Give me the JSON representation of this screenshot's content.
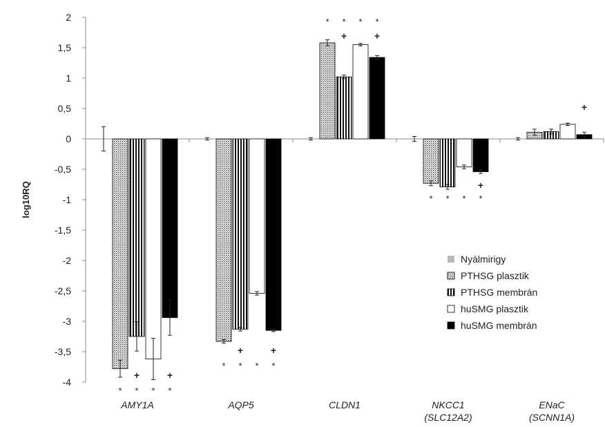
{
  "chart_data": {
    "type": "bar",
    "ylabel": "log10RQ",
    "xlabel": "",
    "ylim": [
      -4,
      2
    ],
    "yticks": [
      "2",
      "1,5",
      "1",
      "0,5",
      "0",
      "-0,5",
      "-1",
      "-1,5",
      "-2",
      "-2,5",
      "-3",
      "-3,5",
      "-4"
    ],
    "categories": [
      {
        "line1": "AMY1A",
        "line2": ""
      },
      {
        "line1": "AQP5",
        "line2": ""
      },
      {
        "line1": "CLDN1",
        "line2": ""
      },
      {
        "line1": "NKCC1",
        "line2": "(SLC12A2)"
      },
      {
        "line1": "ENaC",
        "line2": "(SCNN1A)"
      }
    ],
    "legend_position": "bottom-right",
    "grid": false,
    "series": [
      {
        "name": "Nyálmirigy",
        "fill": "none",
        "values": [
          0,
          0,
          0,
          0,
          0
        ],
        "errors": [
          0.2,
          0.02,
          0.02,
          0.04,
          0.02
        ]
      },
      {
        "name": "PTHSG plasztik",
        "fill": "dots",
        "values": [
          -3.78,
          -3.33,
          1.58,
          -0.73,
          0.11
        ],
        "errors": [
          0.14,
          0.03,
          0.05,
          0.04,
          0.05
        ]
      },
      {
        "name": "PTHSG membrán",
        "fill": "vlines",
        "values": [
          -3.25,
          -3.13,
          1.02,
          -0.79,
          0.12
        ],
        "errors": [
          0.24,
          0.03,
          0.03,
          0.04,
          0.04
        ]
      },
      {
        "name": "huSMG plasztik",
        "fill": "white",
        "values": [
          -3.62,
          -2.54,
          1.55,
          -0.46,
          0.24
        ],
        "errors": [
          0.34,
          0.03,
          0.02,
          0.03,
          0.02
        ]
      },
      {
        "name": "huSMG membrán",
        "fill": "black",
        "values": [
          -2.94,
          -3.15,
          1.34,
          -0.54,
          0.07
        ],
        "errors": [
          0.29,
          0.02,
          0.03,
          0.03,
          0.04
        ]
      }
    ],
    "markers": [
      {
        "text": "*",
        "category": 0,
        "series": 1,
        "place": "below"
      },
      {
        "text": "*",
        "category": 0,
        "series": 2,
        "place": "below"
      },
      {
        "text": "+",
        "category": 0,
        "series": 2,
        "place": "below-high"
      },
      {
        "text": "*",
        "category": 0,
        "series": 3,
        "place": "below"
      },
      {
        "text": "*",
        "category": 0,
        "series": 4,
        "place": "below"
      },
      {
        "text": "+",
        "category": 0,
        "series": 4,
        "place": "below-high"
      },
      {
        "text": "*",
        "category": 1,
        "series": 1,
        "place": "below"
      },
      {
        "text": "*",
        "category": 1,
        "series": 2,
        "place": "below"
      },
      {
        "text": "+",
        "category": 1,
        "series": 2,
        "place": "below-high"
      },
      {
        "text": "*",
        "category": 1,
        "series": 3,
        "place": "below"
      },
      {
        "text": "*",
        "category": 1,
        "series": 4,
        "place": "below"
      },
      {
        "text": "+",
        "category": 1,
        "series": 4,
        "place": "below-high"
      },
      {
        "text": "*",
        "category": 2,
        "series": 1,
        "place": "above"
      },
      {
        "text": "*",
        "category": 2,
        "series": 2,
        "place": "above"
      },
      {
        "text": "+",
        "category": 2,
        "series": 2,
        "place": "above-low"
      },
      {
        "text": "*",
        "category": 2,
        "series": 3,
        "place": "above"
      },
      {
        "text": "*",
        "category": 2,
        "series": 4,
        "place": "above"
      },
      {
        "text": "+",
        "category": 2,
        "series": 4,
        "place": "above-low"
      },
      {
        "text": "*",
        "category": 3,
        "series": 1,
        "place": "below"
      },
      {
        "text": "*",
        "category": 3,
        "series": 2,
        "place": "below"
      },
      {
        "text": "*",
        "category": 3,
        "series": 3,
        "place": "below"
      },
      {
        "text": "*",
        "category": 3,
        "series": 4,
        "place": "below"
      },
      {
        "text": "+",
        "category": 3,
        "series": 4,
        "place": "below-high"
      },
      {
        "text": "+",
        "category": 4,
        "series": 4,
        "place": "above-far"
      }
    ]
  }
}
